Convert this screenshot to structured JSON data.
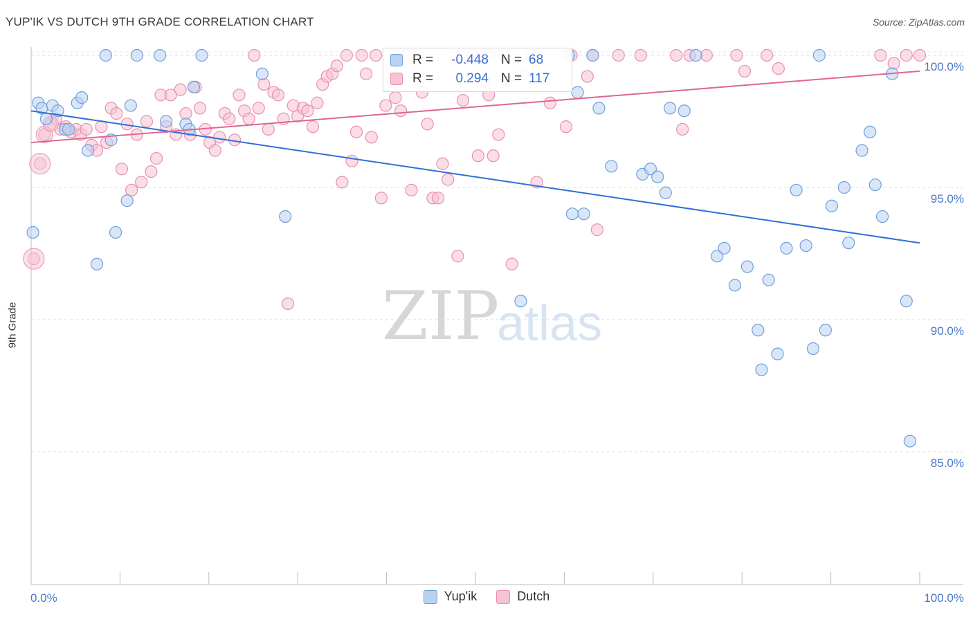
{
  "title": "YUP'IK VS DUTCH 9TH GRADE CORRELATION CHART",
  "source": "Source: ZipAtlas.com",
  "watermark": {
    "zip": "ZIP",
    "atlas": "atlas"
  },
  "colors": {
    "yupik_fill": "#b9d2f0",
    "yupik_stroke": "#6f9fdb",
    "yupik_line": "#2f6fd6",
    "dutch_fill": "#f6c3d3",
    "dutch_stroke": "#ea8fae",
    "dutch_line": "#e06592",
    "tick_text": "#4a78c8"
  },
  "legend": {
    "rows": [
      {
        "r_label": "R =",
        "r_value": "-0.448",
        "n_label": "N =",
        "n_value": "68"
      },
      {
        "r_label": "R =",
        "r_value": "0.294",
        "n_label": "N =",
        "n_value": "117"
      }
    ]
  },
  "bottom_legend": [
    "Yup'ik",
    "Dutch"
  ],
  "chart_data": {
    "type": "scatter",
    "title": "YUP'IK VS DUTCH 9TH GRADE CORRELATION CHART",
    "xlabel": "",
    "ylabel": "9th Grade",
    "xlim": [
      0,
      100
    ],
    "ylim": [
      80.0,
      100.8
    ],
    "x_tick_labels": [
      "0.0%",
      "100.0%"
    ],
    "y_ticks": [
      85,
      90,
      95,
      100
    ],
    "y_tick_labels": [
      "85.0%",
      "90.0%",
      "95.0%",
      "100.0%"
    ],
    "grid": "horizontal dashed",
    "legend_position": "top-center",
    "series": [
      {
        "name": "Yup'ik",
        "trend": {
          "x": [
            0,
            100
          ],
          "y": [
            97.9,
            92.9
          ]
        },
        "points": [
          [
            0.2,
            93.3
          ],
          [
            0.8,
            98.2
          ],
          [
            1.2,
            98.0
          ],
          [
            1.7,
            97.6
          ],
          [
            2.4,
            98.1
          ],
          [
            3.0,
            97.9
          ],
          [
            3.8,
            97.2
          ],
          [
            4.2,
            97.2
          ],
          [
            5.2,
            98.2
          ],
          [
            5.7,
            98.4
          ],
          [
            6.4,
            96.4
          ],
          [
            7.4,
            92.1
          ],
          [
            8.4,
            100.0
          ],
          [
            9.0,
            96.8
          ],
          [
            9.5,
            93.3
          ],
          [
            10.8,
            94.5
          ],
          [
            11.2,
            98.1
          ],
          [
            11.9,
            100.0
          ],
          [
            14.5,
            100.0
          ],
          [
            15.2,
            97.5
          ],
          [
            17.4,
            97.4
          ],
          [
            17.8,
            97.2
          ],
          [
            18.3,
            98.8
          ],
          [
            19.2,
            100.0
          ],
          [
            26.0,
            99.3
          ],
          [
            28.6,
            93.9
          ],
          [
            41.0,
            100.0
          ],
          [
            41.5,
            100.0
          ],
          [
            51.5,
            100.0
          ],
          [
            55.1,
            90.7
          ],
          [
            60.5,
            100.0
          ],
          [
            60.9,
            94.0
          ],
          [
            61.5,
            98.6
          ],
          [
            62.2,
            94.0
          ],
          [
            63.2,
            100.0
          ],
          [
            63.9,
            98.0
          ],
          [
            65.3,
            95.8
          ],
          [
            68.8,
            95.5
          ],
          [
            69.7,
            95.7
          ],
          [
            70.5,
            95.4
          ],
          [
            71.4,
            94.8
          ],
          [
            71.9,
            98.0
          ],
          [
            73.5,
            97.9
          ],
          [
            74.8,
            100.0
          ],
          [
            77.2,
            92.4
          ],
          [
            78.0,
            92.7
          ],
          [
            79.2,
            91.3
          ],
          [
            80.6,
            92.0
          ],
          [
            81.8,
            89.6
          ],
          [
            82.2,
            88.1
          ],
          [
            83.0,
            91.5
          ],
          [
            84.0,
            88.7
          ],
          [
            85.0,
            92.7
          ],
          [
            86.1,
            94.9
          ],
          [
            87.2,
            92.8
          ],
          [
            88.0,
            88.9
          ],
          [
            88.7,
            100.0
          ],
          [
            89.4,
            89.6
          ],
          [
            90.1,
            94.3
          ],
          [
            91.5,
            95.0
          ],
          [
            92.0,
            92.9
          ],
          [
            93.5,
            96.4
          ],
          [
            94.4,
            97.1
          ],
          [
            95.0,
            95.1
          ],
          [
            95.8,
            93.9
          ],
          [
            96.9,
            99.3
          ],
          [
            98.5,
            90.7
          ],
          [
            98.9,
            85.4
          ]
        ]
      },
      {
        "name": "Dutch",
        "trend": {
          "x": [
            0,
            100
          ],
          "y": [
            96.7,
            99.4
          ]
        },
        "points": [
          [
            0.3,
            92.3
          ],
          [
            1.0,
            95.9
          ],
          [
            1.5,
            97.0
          ],
          [
            2.2,
            97.4
          ],
          [
            2.8,
            97.6
          ],
          [
            3.3,
            97.2
          ],
          [
            3.9,
            97.3
          ],
          [
            4.5,
            97.1
          ],
          [
            5.1,
            97.2
          ],
          [
            5.6,
            97.0
          ],
          [
            6.2,
            97.2
          ],
          [
            6.8,
            96.6
          ],
          [
            7.4,
            96.4
          ],
          [
            7.9,
            97.3
          ],
          [
            8.5,
            96.7
          ],
          [
            9.0,
            98.0
          ],
          [
            9.6,
            97.8
          ],
          [
            10.2,
            95.7
          ],
          [
            10.8,
            97.4
          ],
          [
            11.3,
            94.9
          ],
          [
            11.9,
            97.0
          ],
          [
            12.4,
            95.2
          ],
          [
            13.0,
            97.5
          ],
          [
            13.5,
            95.6
          ],
          [
            14.1,
            96.1
          ],
          [
            14.6,
            98.5
          ],
          [
            15.2,
            97.3
          ],
          [
            15.7,
            98.5
          ],
          [
            16.3,
            97.0
          ],
          [
            16.8,
            98.7
          ],
          [
            17.4,
            97.8
          ],
          [
            17.9,
            97.0
          ],
          [
            18.5,
            98.8
          ],
          [
            19.0,
            98.0
          ],
          [
            19.6,
            97.2
          ],
          [
            20.1,
            96.7
          ],
          [
            20.7,
            96.4
          ],
          [
            21.2,
            96.9
          ],
          [
            21.8,
            97.8
          ],
          [
            22.3,
            97.6
          ],
          [
            22.9,
            96.8
          ],
          [
            23.4,
            98.5
          ],
          [
            24.0,
            97.9
          ],
          [
            24.5,
            97.6
          ],
          [
            25.1,
            100.0
          ],
          [
            25.6,
            98.0
          ],
          [
            26.2,
            98.9
          ],
          [
            26.7,
            97.2
          ],
          [
            27.3,
            98.6
          ],
          [
            27.8,
            98.5
          ],
          [
            28.4,
            97.6
          ],
          [
            28.9,
            90.6
          ],
          [
            29.5,
            98.1
          ],
          [
            30.0,
            97.7
          ],
          [
            30.6,
            98.0
          ],
          [
            31.1,
            97.9
          ],
          [
            31.7,
            97.3
          ],
          [
            32.2,
            98.2
          ],
          [
            32.8,
            98.9
          ],
          [
            33.3,
            99.2
          ],
          [
            33.9,
            99.3
          ],
          [
            34.4,
            99.6
          ],
          [
            35.0,
            95.2
          ],
          [
            35.5,
            100.0
          ],
          [
            36.1,
            96.0
          ],
          [
            36.6,
            97.1
          ],
          [
            37.2,
            100.0
          ],
          [
            37.7,
            99.3
          ],
          [
            38.3,
            96.9
          ],
          [
            38.8,
            100.0
          ],
          [
            39.4,
            94.6
          ],
          [
            39.9,
            98.1
          ],
          [
            40.5,
            99.5
          ],
          [
            41.0,
            98.4
          ],
          [
            41.6,
            97.9
          ],
          [
            42.2,
            100.0
          ],
          [
            42.8,
            94.9
          ],
          [
            43.3,
            99.8
          ],
          [
            44.0,
            98.6
          ],
          [
            44.6,
            97.4
          ],
          [
            45.2,
            94.6
          ],
          [
            45.8,
            94.6
          ],
          [
            46.3,
            95.9
          ],
          [
            46.9,
            95.3
          ],
          [
            47.5,
            100.0
          ],
          [
            48.0,
            92.4
          ],
          [
            48.6,
            98.3
          ],
          [
            49.1,
            100.0
          ],
          [
            49.7,
            100.0
          ],
          [
            50.3,
            96.2
          ],
          [
            50.9,
            99.0
          ],
          [
            51.5,
            98.5
          ],
          [
            52.0,
            96.2
          ],
          [
            52.6,
            97.0
          ],
          [
            53.2,
            100.0
          ],
          [
            54.1,
            92.1
          ],
          [
            55.3,
            99.3
          ],
          [
            56.3,
            100.0
          ],
          [
            56.9,
            95.2
          ],
          [
            58.4,
            98.2
          ],
          [
            60.2,
            97.3
          ],
          [
            60.8,
            100.0
          ],
          [
            62.6,
            99.2
          ],
          [
            63.2,
            100.0
          ],
          [
            63.7,
            93.4
          ],
          [
            66.1,
            100.0
          ],
          [
            68.6,
            100.0
          ],
          [
            72.6,
            100.0
          ],
          [
            73.3,
            97.2
          ],
          [
            74.1,
            100.0
          ],
          [
            76.0,
            100.0
          ],
          [
            79.4,
            100.0
          ],
          [
            80.3,
            99.4
          ],
          [
            82.8,
            100.0
          ],
          [
            84.1,
            99.5
          ],
          [
            95.6,
            100.0
          ],
          [
            97.1,
            99.7
          ],
          [
            98.5,
            100.0
          ],
          [
            100.0,
            100.0
          ]
        ]
      }
    ]
  }
}
